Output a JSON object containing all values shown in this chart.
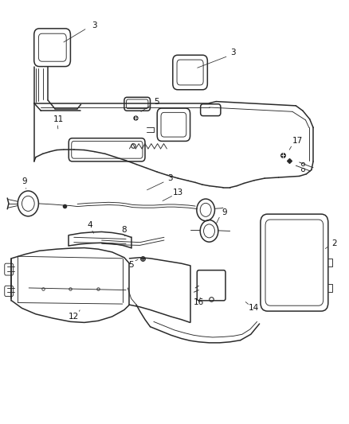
{
  "background_color": "#ffffff",
  "line_color": "#2a2a2a",
  "figsize": [
    4.38,
    5.33
  ],
  "dpi": 100
}
